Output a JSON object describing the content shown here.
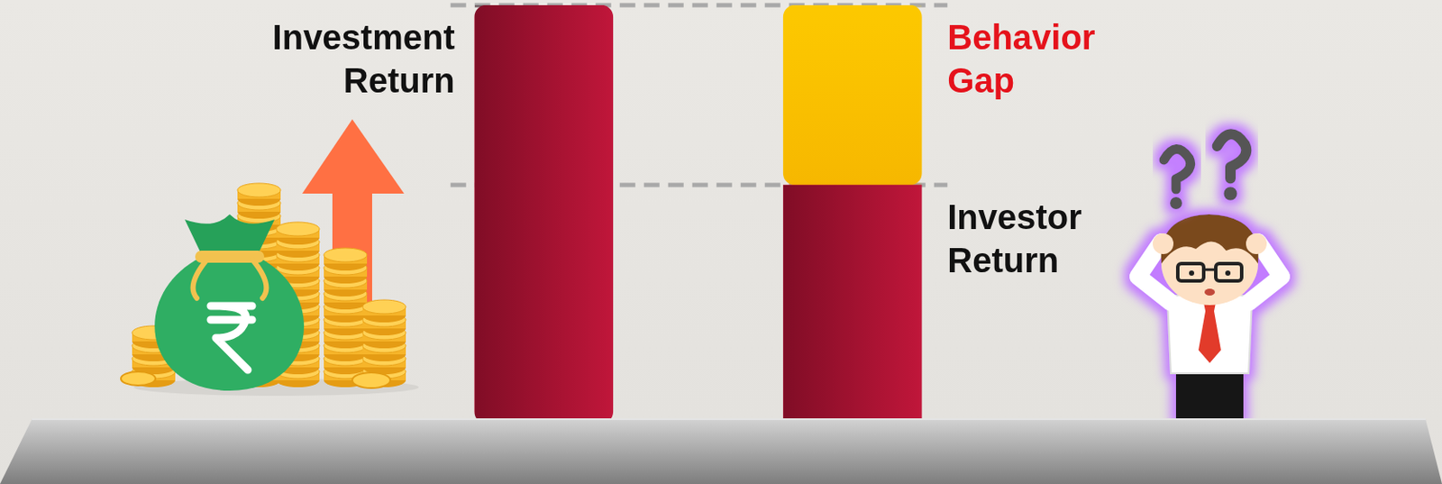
{
  "chart_data": {
    "type": "bar",
    "stacked": true,
    "categories": [
      null,
      null
    ],
    "series": [
      {
        "name": "Investment Return",
        "color": "#c0163a",
        "values": [
          100,
          null
        ]
      },
      {
        "name": "Investor Return",
        "color": "#c0163a",
        "values": [
          null,
          57
        ]
      },
      {
        "name": "Behavior Gap",
        "color": "#fcc500",
        "values": [
          null,
          43
        ]
      }
    ],
    "ylim": [
      0,
      100
    ],
    "tick_labels": false,
    "grid": false
  }
}
